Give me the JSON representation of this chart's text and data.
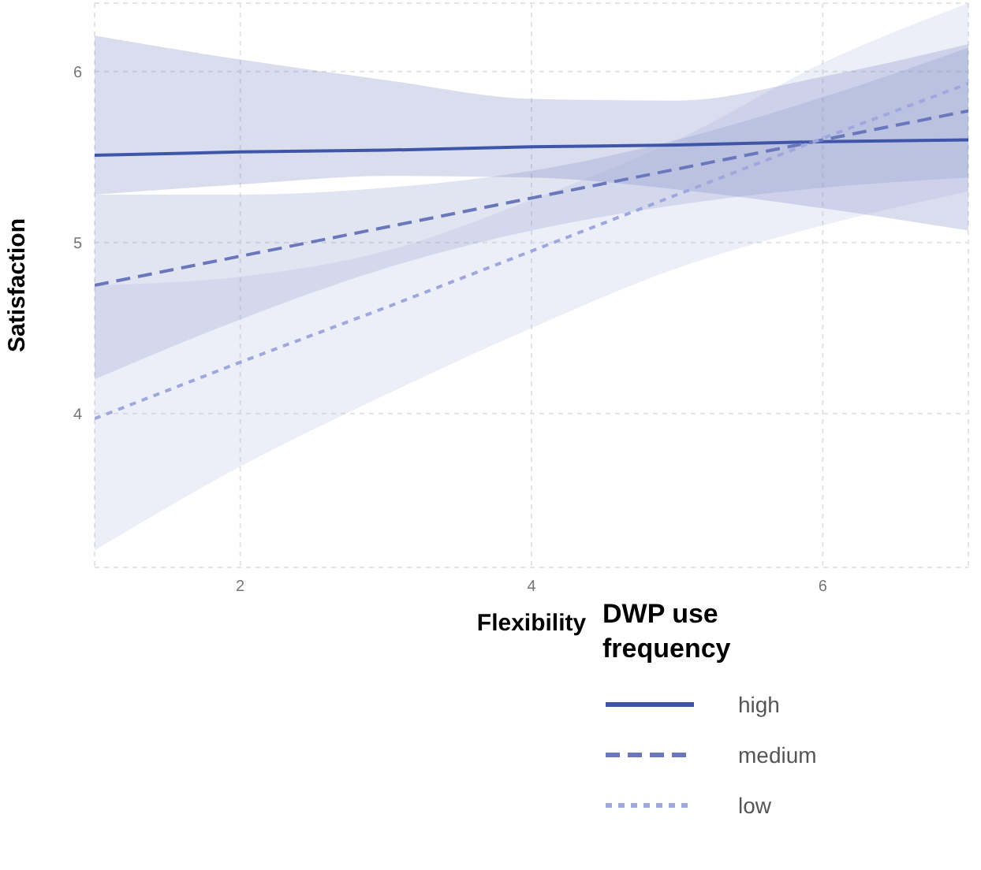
{
  "chart_data": {
    "type": "line",
    "xlabel": "Flexibility",
    "ylabel": "Satisfaction",
    "legend_title": "DWP use frequency",
    "x": [
      1,
      2,
      3,
      4,
      5,
      6,
      7
    ],
    "series": [
      {
        "name": "high",
        "color": "#3f56a8",
        "line_style": "solid",
        "values": [
          5.51,
          5.53,
          5.54,
          5.56,
          5.57,
          5.59,
          5.6
        ],
        "lower": [
          5.28,
          5.34,
          5.39,
          5.38,
          5.31,
          5.2,
          5.07
        ],
        "upper": [
          6.21,
          6.07,
          5.95,
          5.84,
          5.83,
          5.97,
          6.16
        ]
      },
      {
        "name": "medium",
        "color": "#6a78bb",
        "line_style": "dashed",
        "values": [
          4.75,
          4.92,
          5.09,
          5.26,
          5.43,
          5.6,
          5.77
        ],
        "lower": [
          4.2,
          4.55,
          4.85,
          5.07,
          5.22,
          5.32,
          5.38
        ],
        "upper": [
          5.28,
          5.28,
          5.32,
          5.42,
          5.6,
          5.85,
          6.14
        ]
      },
      {
        "name": "low",
        "color": "#9fa8dd",
        "line_style": "dotted",
        "values": [
          3.97,
          4.3,
          4.62,
          4.95,
          5.28,
          5.61,
          5.93
        ],
        "lower": [
          3.2,
          3.69,
          4.11,
          4.5,
          4.85,
          5.1,
          5.3
        ],
        "upper": [
          4.75,
          4.8,
          4.95,
          5.25,
          5.6,
          6.05,
          6.4
        ]
      }
    ],
    "xlim": [
      1,
      7
    ],
    "xticks": [
      2,
      4,
      6
    ],
    "ylim": [
      3.1,
      6.4
    ],
    "yticks": [
      4,
      5,
      6
    ],
    "grid": true,
    "legend": "bottom right",
    "marker": "none"
  }
}
